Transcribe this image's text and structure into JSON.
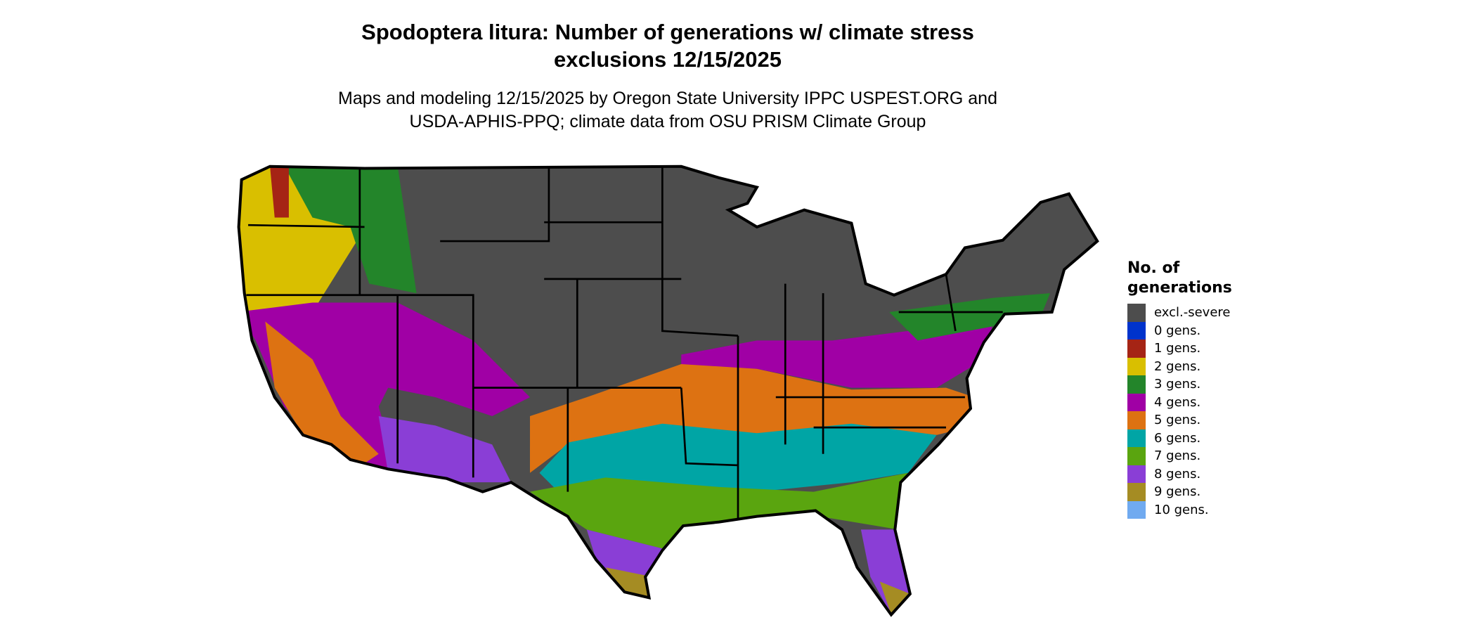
{
  "title": {
    "line1": "Spodoptera litura: Number of generations w/ climate stress",
    "line2": "exclusions 12/15/2025"
  },
  "subtitle": {
    "line1": "Maps and modeling 12/15/2025 by Oregon State University IPPC USPEST.ORG and",
    "line2": "USDA-APHIS-PPQ; climate data from OSU PRISM Climate Group"
  },
  "legend": {
    "title_line1": "No. of",
    "title_line2": "generations",
    "items": [
      {
        "label": "excl.-severe",
        "color": "#4d4d4d"
      },
      {
        "label": "0 gens.",
        "color": "#0033cc"
      },
      {
        "label": "1 gens.",
        "color": "#a52415"
      },
      {
        "label": "2 gens.",
        "color": "#d9bf00"
      },
      {
        "label": "3 gens.",
        "color": "#23852a"
      },
      {
        "label": "4 gens.",
        "color": "#a000a5"
      },
      {
        "label": "5 gens.",
        "color": "#dd7212"
      },
      {
        "label": "6 gens.",
        "color": "#00a5a5"
      },
      {
        "label": "7 gens.",
        "color": "#5aa50f"
      },
      {
        "label": "8 gens.",
        "color": "#8a3ed6"
      },
      {
        "label": "9 gens.",
        "color": "#a58c23"
      },
      {
        "label": "10 gens.",
        "color": "#70aaf0"
      }
    ]
  }
}
